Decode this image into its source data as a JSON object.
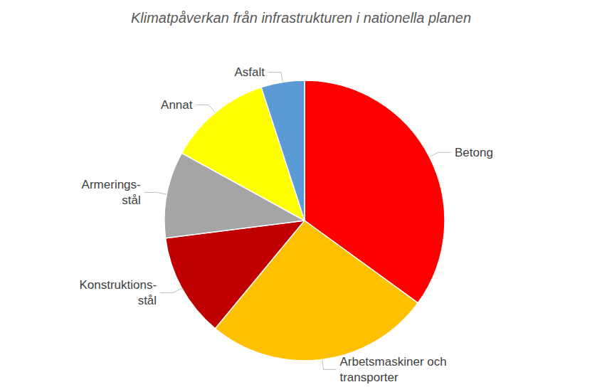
{
  "chart_data": {
    "type": "pie",
    "title": "Klimatpåverkan från infrastrukturen i nationella planen",
    "categories": [
      "Betong",
      "Arbetsmaskiner och\ntransporter",
      "Konstruktions-\nstål",
      "Armerings-\nstål",
      "Annat",
      "Asfalt"
    ],
    "values": [
      35,
      26,
      12,
      10,
      12,
      5
    ],
    "colors": [
      "#ff0000",
      "#ffc000",
      "#c00000",
      "#a5a5a5",
      "#ffff00",
      "#5b9bd5"
    ],
    "legend": false,
    "data_labels": false
  }
}
